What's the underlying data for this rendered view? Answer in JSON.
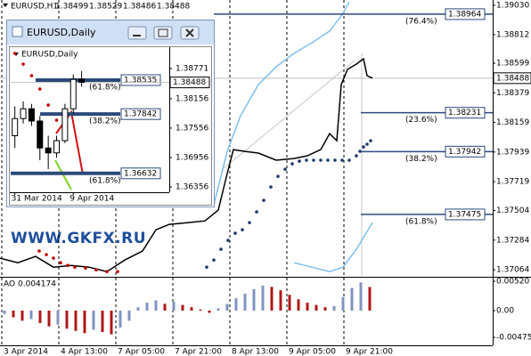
{
  "chart_data": [
    {
      "type": "line",
      "title": "EURUSD,H1",
      "ohlc": [
        1.38499,
        1.38529,
        1.38486,
        1.38488
      ],
      "last_price": 1.38488,
      "watermark": "WWW.GKFX.RU",
      "xlim": [
        0,
        138.25
      ],
      "ylim": [
        1.37018,
        1.39056
      ],
      "yticks": [
        {
          "value": 1.3903,
          "label": "1.39030"
        },
        1.38812,
        1.38599,
        1.38379,
        1.38159,
        1.37939,
        1.37719,
        1.37504,
        1.37284,
        1.37064
      ],
      "xticks": [
        {
          "value": 0.5,
          "label": "3 Apr 2014"
        },
        {
          "value": 16.5,
          "label": "4 Apr 13:00"
        },
        {
          "value": 32.5,
          "label": "7 Apr 05:00"
        },
        {
          "value": 48.5,
          "label": "7 Apr 21:00"
        },
        {
          "value": 64.5,
          "label": "8 Apr 13:00"
        },
        {
          "value": 80.5,
          "label": "9 Apr 05:00"
        },
        {
          "value": 96.5,
          "label": "9 Apr 21:00"
        }
      ],
      "series": [
        {
          "style": "line",
          "color": "#000000",
          "x": [
            0,
            5,
            10,
            15,
            20,
            25,
            30,
            35,
            40,
            43.75,
            47.5,
            52.5,
            57.5,
            61.25,
            63.75,
            65.5,
            68.75,
            72.5,
            77.5,
            82.5,
            86.25,
            90,
            92.5,
            94.5,
            95.75,
            97.5,
            100,
            102,
            103,
            104.5
          ],
          "values": [
            1.3715,
            1.37116,
            1.37163,
            1.37083,
            1.37096,
            1.37083,
            1.3705,
            1.37136,
            1.37203,
            1.37361,
            1.37401,
            1.37414,
            1.37427,
            1.37507,
            1.37779,
            1.37957,
            1.37944,
            1.37931,
            1.37878,
            1.37891,
            1.37911,
            1.37957,
            1.38076,
            1.38023,
            1.3844,
            1.38553,
            1.38593,
            1.38632,
            1.38507,
            1.38488
          ]
        },
        {
          "style": "line",
          "color": "#7ec0ee",
          "x": [
            60,
            63.75,
            67.5,
            72.5,
            77.5,
            82.5,
            87.5,
            92.5,
            96.25,
            98
          ],
          "values": [
            1.37547,
            1.37944,
            1.38209,
            1.3844,
            1.38573,
            1.38672,
            1.38751,
            1.38838,
            1.3897,
            1.39056
          ]
        },
        {
          "style": "line",
          "color": "#7ec0ee",
          "x": [
            82.5,
            87.5,
            92.5,
            96.25,
            100,
            104.5
          ],
          "values": [
            1.37116,
            1.37083,
            1.3705,
            1.37083,
            1.37216,
            1.37414
          ]
        },
        {
          "style": "dots",
          "color": "#1f3a6e",
          "x": [
            58,
            60,
            62,
            64,
            66,
            68,
            70,
            72,
            74,
            76,
            78,
            80,
            82,
            84,
            86,
            88,
            90,
            92,
            94,
            96,
            98,
            100,
            101,
            102,
            103,
            104
          ],
          "values": [
            1.37083,
            1.37136,
            1.37216,
            1.37282,
            1.37335,
            1.37361,
            1.37414,
            1.37494,
            1.3758,
            1.37679,
            1.37758,
            1.37811,
            1.37851,
            1.37871,
            1.37878,
            1.37878,
            1.37878,
            1.37878,
            1.37878,
            1.37878,
            1.37878,
            1.37911,
            1.37944,
            1.37977,
            1.37997,
            1.38023
          ]
        },
        {
          "style": "dots",
          "color": "#c00000",
          "x": [
            11,
            13,
            15,
            17,
            19,
            21,
            24,
            27,
            30,
            33
          ],
          "values": [
            1.37203,
            1.37176,
            1.3715,
            1.37116,
            1.37096,
            1.37083,
            1.37076,
            1.37063,
            1.3705,
            1.3705
          ]
        }
      ],
      "fib_levels": [
        {
          "label": "(76.4%)",
          "value": 1.38964
        },
        {
          "label": "(23.6%)",
          "value": 1.38231
        },
        {
          "label": "(38.2%)",
          "value": 1.37942
        },
        {
          "label": "(61.8%)",
          "value": 1.37475
        }
      ]
    },
    {
      "type": "bar",
      "title": "AO",
      "last": 0.004174,
      "up_color": "#8094c0",
      "down_color": "#b01818",
      "xlim": [
        0,
        138.25
      ],
      "ylim": [
        -0.00615,
        0.00567
      ],
      "yticks": [
        {
          "value": 0.0052,
          "label": "0.00520"
        },
        {
          "value": 0,
          "label": "0.00"
        },
        -0.00475
      ],
      "x": [
        1.25,
        3.75,
        6.25,
        8.75,
        11.25,
        13.75,
        16.25,
        18.75,
        21.25,
        23.75,
        26.25,
        28.75,
        31.25,
        33.75,
        36.25,
        38.75,
        41.25,
        43.75,
        46.25,
        48.75,
        51.25,
        53.75,
        56.25,
        58.75,
        61.25,
        63.75,
        66.25,
        68.75,
        71.25,
        73.75,
        76.25,
        78.75,
        81.25,
        83.75,
        86.25,
        88.75,
        91.25,
        93.75,
        96.25,
        98.75,
        101.25,
        103.75
      ],
      "values": [
        -0.0006,
        -0.0012,
        -0.0018,
        -0.0015,
        -0.0022,
        -0.0028,
        -0.0025,
        -0.0032,
        -0.0036,
        -0.004,
        -0.0034,
        -0.0038,
        -0.0042,
        -0.003,
        -0.0018,
        0.0006,
        0.0014,
        0.0018,
        0.0012,
        0.0016,
        0.001,
        0.0006,
        0.0002,
        -0.0004,
        0.0004,
        0.0012,
        0.0022,
        0.003,
        0.0038,
        0.0044,
        0.0042,
        0.0036,
        0.0028,
        0.002,
        0.0014,
        0.001,
        0.0006,
        0.0008,
        0.0024,
        0.004,
        0.005,
        0.004174
      ]
    },
    {
      "type": "candlestick",
      "window_title": "EURUSD,Daily",
      "title": "EURUSD,Daily",
      "last_price": 1.38488,
      "xlim": [
        -0.5,
        18.5
      ],
      "ylim": [
        1.36265,
        1.39171
      ],
      "yticks": [
        1.38771,
        1.38156,
        1.37556,
        1.36956,
        1.36356
      ],
      "xticks": [
        {
          "value": 0,
          "label": "31 Mar 2014"
        },
        {
          "value": 7,
          "label": "9 Apr 2014"
        }
      ],
      "x": [
        0,
        1,
        2,
        3,
        4,
        5,
        6,
        7,
        8
      ],
      "open": [
        1.374,
        1.3775,
        1.3795,
        1.377,
        1.3715,
        1.3705,
        1.373,
        1.3795,
        1.3855
      ],
      "high": [
        1.38,
        1.381,
        1.3805,
        1.378,
        1.374,
        1.374,
        1.3805,
        1.3865,
        1.3872
      ],
      "low": [
        1.3715,
        1.3765,
        1.376,
        1.369,
        1.3672,
        1.3695,
        1.3725,
        1.3785,
        1.384
      ],
      "close": [
        1.3775,
        1.3795,
        1.377,
        1.3715,
        1.3705,
        1.373,
        1.3795,
        1.3855,
        1.3849
      ],
      "sar": {
        "color": "#c00000",
        "x": [
          0,
          1,
          2,
          3,
          4,
          5
        ],
        "values": [
          1.3908,
          1.38862,
          1.38626,
          1.38353,
          1.38026,
          1.37717
        ]
      },
      "fib_levels": [
        {
          "label": "(61.8%)",
          "value": 1.38535
        },
        {
          "label": "(38.2%)",
          "value": 1.37842
        },
        {
          "label": "(61.8%)",
          "value": 1.36632
        }
      ]
    }
  ]
}
